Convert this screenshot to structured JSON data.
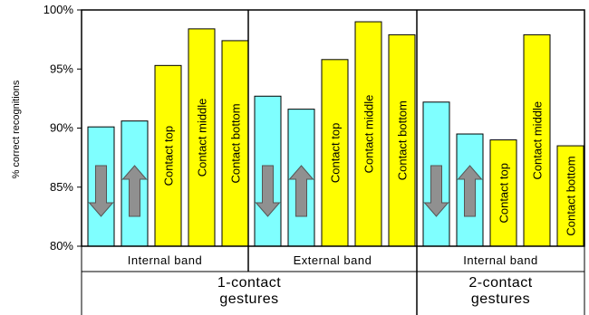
{
  "chart_data": {
    "type": "bar",
    "ylabel": "% correct recognitions",
    "ylim": [
      80,
      100
    ],
    "yticks": [
      "80%",
      "85%",
      "90%",
      "95%",
      "100%"
    ],
    "legend": "none",
    "colors": {
      "swipe": "#7FFFFF",
      "contact": "#FFFF00",
      "arrow": "#909090"
    },
    "groups": [
      {
        "label_lines": [
          "1-contact",
          "gestures"
        ]
      },
      {
        "label_lines": [
          "2-contact",
          "gestures"
        ]
      }
    ],
    "bands": [
      {
        "label": "Internal band",
        "bars": [
          {
            "kind": "swipe",
            "icon": "down-arrow-icon",
            "label": "",
            "value": 90.1
          },
          {
            "kind": "swipe",
            "icon": "up-arrow-icon",
            "label": "",
            "value": 90.6
          },
          {
            "kind": "contact",
            "label": "Contact top",
            "value": 95.3
          },
          {
            "kind": "contact",
            "label": "Contact middle",
            "value": 98.4
          },
          {
            "kind": "contact",
            "label": "Contact bottom",
            "value": 97.4
          }
        ]
      },
      {
        "label": "External band",
        "bars": [
          {
            "kind": "swipe",
            "icon": "down-arrow-icon",
            "label": "",
            "value": 92.7
          },
          {
            "kind": "swipe",
            "icon": "up-arrow-icon",
            "label": "",
            "value": 91.6
          },
          {
            "kind": "contact",
            "label": "Contact top",
            "value": 95.8
          },
          {
            "kind": "contact",
            "label": "Contact middle",
            "value": 99.0
          },
          {
            "kind": "contact",
            "label": "Contact bottom",
            "value": 97.9
          }
        ]
      },
      {
        "label": "Internal band",
        "bars": [
          {
            "kind": "swipe",
            "icon": "down-arrow-icon",
            "label": "",
            "value": 92.2
          },
          {
            "kind": "swipe",
            "icon": "up-arrow-icon",
            "label": "",
            "value": 89.5
          },
          {
            "kind": "contact",
            "label": "Contact top",
            "value": 89.0
          },
          {
            "kind": "contact",
            "label": "Contact middle",
            "value": 97.9
          },
          {
            "kind": "contact",
            "label": "Contact bottom",
            "value": 88.5
          }
        ]
      }
    ]
  }
}
